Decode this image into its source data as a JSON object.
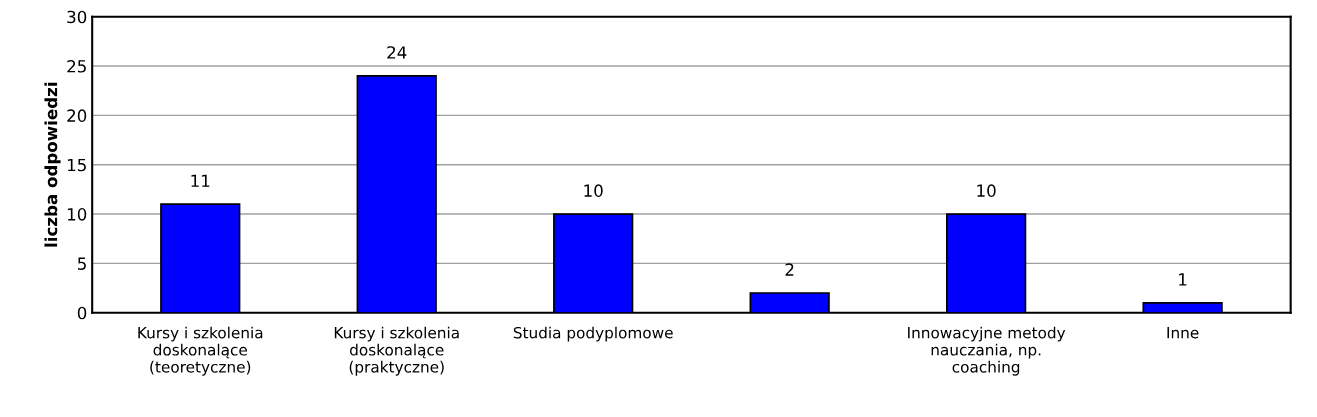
{
  "chart_data": {
    "type": "bar",
    "ylabel": "liczba odpowiedzi",
    "categories": [
      "Kursy i szkolenia\ndoskonalące\n(teoretyczne)",
      "Kursy i szkolenia\ndoskonalące\n(praktyczne)",
      "Studia podyplomowe",
      null,
      "Innowacyjne metody\nnauczania, np.\ncoaching",
      "Inne"
    ],
    "values": [
      11,
      24,
      10,
      2,
      10,
      1
    ],
    "color": "#0000ff",
    "ylim": [
      0,
      30
    ],
    "yticks": [
      0,
      5,
      10,
      15,
      20,
      25,
      30
    ],
    "grid": "y",
    "data_labels": true
  }
}
